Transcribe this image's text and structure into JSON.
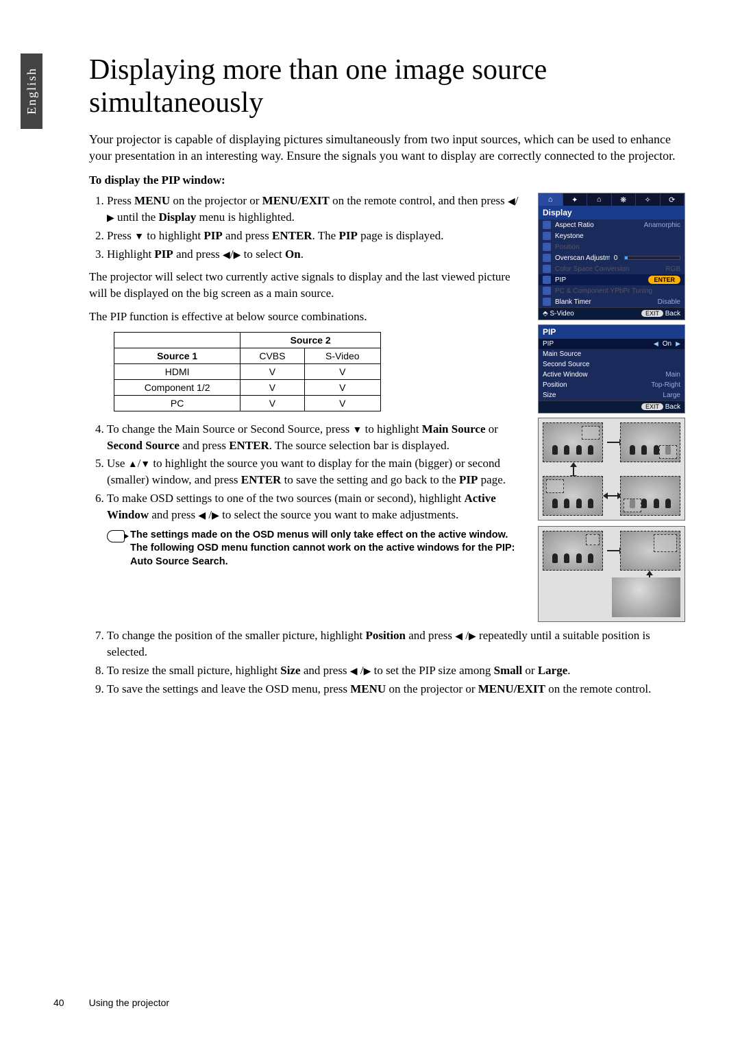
{
  "sideTab": "English",
  "title": "Displaying more than one image source simultaneously",
  "intro": "Your projector is capable of displaying pictures simultaneously from two input sources, which can be used to enhance your presentation in an interesting way. Ensure the signals you want to display are correctly connected to the projector.",
  "subhead": "To display the PIP window:",
  "steps_a": [
    "Press <b>MENU</b> on the projector or <b>MENU/EXIT</b> on the remote control, and then press <span class='tri'>◀</span>/<span class='tri'>▶</span> until the <b>Display</b> menu is highlighted.",
    "Press <span class='tri'>▼</span> to highlight <b>PIP</b> and press <b>ENTER</b>. The <b>PIP</b> page is displayed.",
    "Highlight <b>PIP</b> and press <span class='tri'>◀</span>/<span class='tri'>▶</span> to select <b>On</b>."
  ],
  "para1": "The projector will select two currently active signals to display and the last viewed picture will be displayed on the big screen as a main source.",
  "para2": "The PIP function is effective at below source combinations.",
  "table": {
    "header_source2": "Source 2",
    "header_source1": "Source 1",
    "cols": [
      "CVBS",
      "S-Video"
    ],
    "rows": [
      {
        "name": "HDMI",
        "vals": [
          "V",
          "V"
        ]
      },
      {
        "name": "Component 1/2",
        "vals": [
          "V",
          "V"
        ]
      },
      {
        "name": "PC",
        "vals": [
          "V",
          "V"
        ]
      }
    ]
  },
  "steps_b": [
    "To change the Main Source or Second Source, press <span class='tri'>▼</span> to highlight <b>Main Source</b> or <b>Second Source</b> and press <b>ENTER</b>. The source selection bar is displayed.",
    "Use <span class='tri'>▲</span>/<span class='tri'>▼</span> to highlight the source you want to display for the main (bigger) or second (smaller) window, and press <b>ENTER</b> to save the setting and go back to the <b>PIP</b> page.",
    "To make OSD settings to one of the two sources (main or second), highlight <b>Active Window</b> and press <span class='tri'>◀</span> /<span class='tri'>▶</span> to select the source you want to make adjustments."
  ],
  "note": "The settings made on the OSD menus will only take effect on the active window. The following OSD menu function cannot work on the active windows for the PIP: Auto Source Search.",
  "steps_c": [
    "To change the position of the smaller picture, highlight <b>Position</b> and press <span class='tri'>◀</span> /<span class='tri'>▶</span> repeatedly until a suitable position is selected.",
    "To resize the small picture, highlight <b>Size</b> and press <span class='tri'>◀</span> /<span class='tri'>▶</span> to set the PIP size among <b>Small</b> or <b>Large</b>.",
    "To save the settings and leave the OSD menu, press <b>MENU</b> on the projector or <b>MENU/EXIT</b> on the remote control."
  ],
  "osd": {
    "title": "Display",
    "tabs_count": 6,
    "rows": [
      {
        "label": "Aspect Ratio",
        "value": "Anamorphic"
      },
      {
        "label": "Keystone",
        "value": ""
      },
      {
        "label": "Position",
        "value": "",
        "dim": true
      },
      {
        "label": "Overscan Adjustment",
        "value": "0",
        "slider": true
      },
      {
        "label": "Color Space Conversion",
        "value": "RGB",
        "dim": true
      },
      {
        "label": "PIP",
        "enter": "ENTER",
        "hl": true
      },
      {
        "label": "PC & Component YPbPr Tuning",
        "value": "",
        "dim": true
      },
      {
        "label": "Blank Timer",
        "value": "Disable"
      }
    ],
    "footer_left": "S-Video",
    "footer_right_exit": "EXIT",
    "footer_right_back": "Back"
  },
  "osd2": {
    "title": "PIP",
    "rows": [
      {
        "label": "PIP",
        "value": "On",
        "on": true
      },
      {
        "label": "Main Source",
        "value": ""
      },
      {
        "label": "Second Source",
        "value": ""
      },
      {
        "label": "Active Window",
        "value": "Main"
      },
      {
        "label": "Position",
        "value": "Top-Right"
      },
      {
        "label": "Size",
        "value": "Large"
      }
    ],
    "footer_right_exit": "EXIT",
    "footer_right_back": "Back"
  },
  "footer": {
    "page": "40",
    "section": "Using the projector"
  },
  "colors": {
    "osd_bg": "#1a2a5a",
    "osd_title": "#1a3a8a",
    "osd_hl": "#0a1a4a",
    "enter_btn": "#ffb000"
  }
}
